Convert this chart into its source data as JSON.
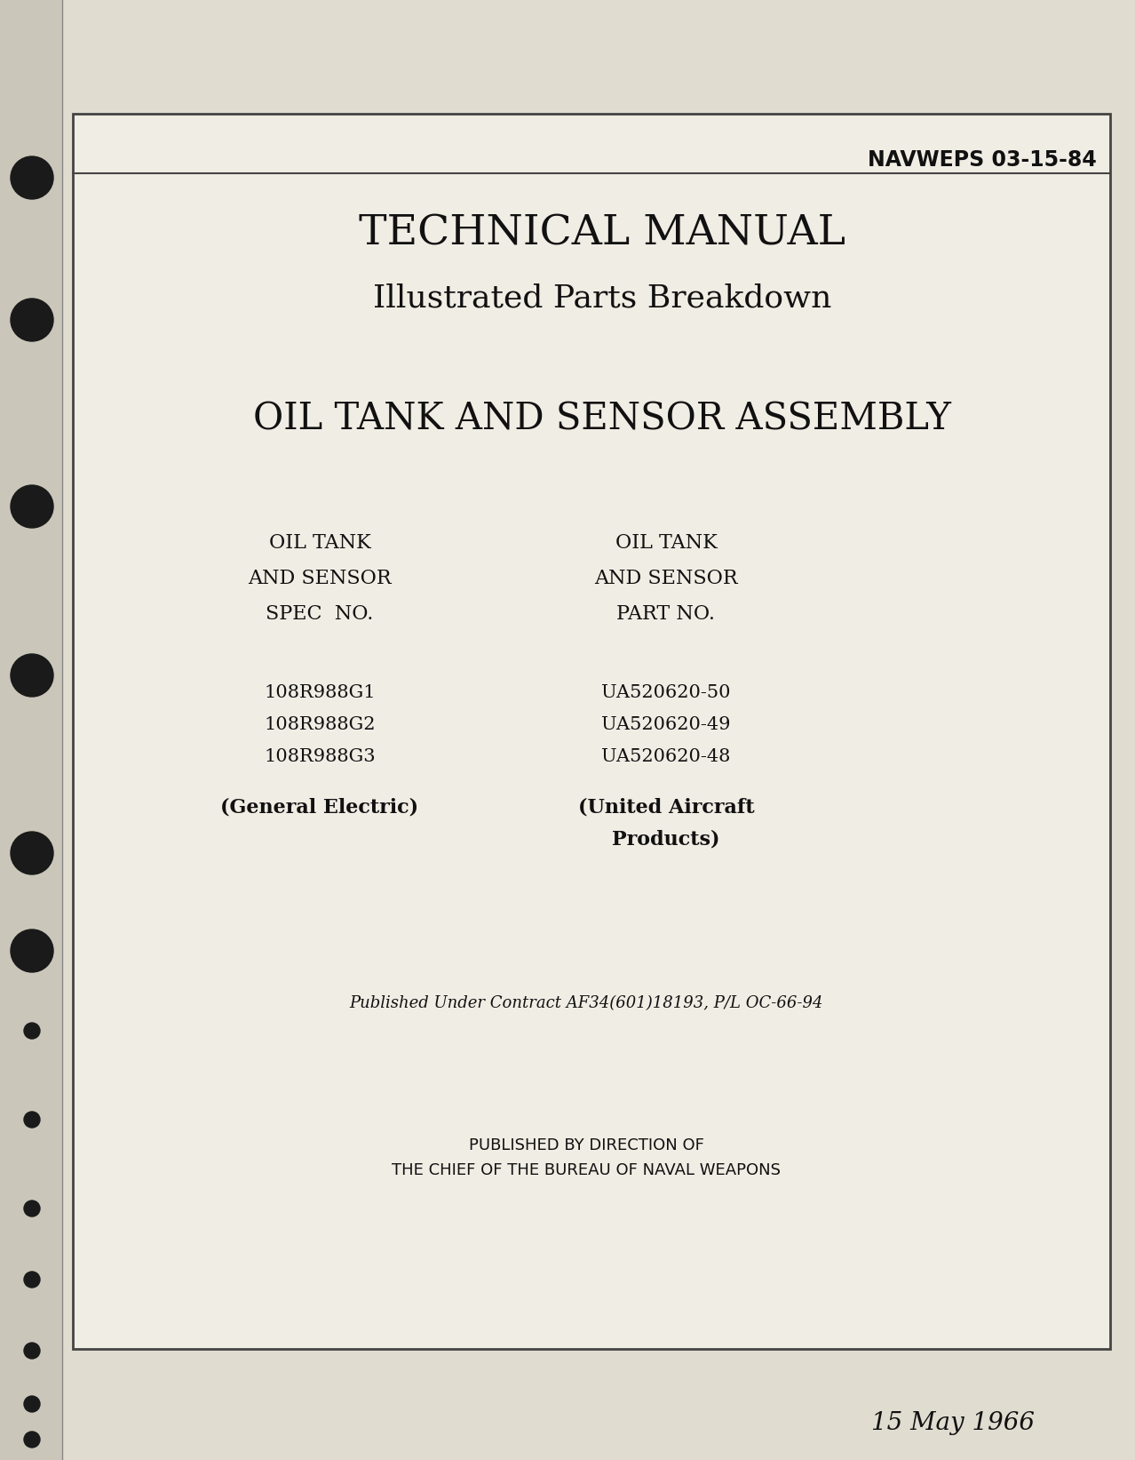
{
  "bg_color": "#e0dcd0",
  "inner_bg": "#f0ede4",
  "navweps": "NAVWEPS 03-15-84",
  "title1": "TECHNICAL MANUAL",
  "title2": "Illustrated Parts Breakdown",
  "main_title": "OIL TANK AND SENSOR ASSEMBLY",
  "col1_header": [
    "OIL TANK",
    "AND SENSOR",
    "SPEC  NO."
  ],
  "col2_header": [
    "OIL TANK",
    "AND SENSOR",
    "PART NO."
  ],
  "col1_specs": [
    "108R988G1",
    "108R988G2",
    "108R988G3"
  ],
  "col2_parts": [
    "UA520620-50",
    "UA520620-49",
    "UA520620-48"
  ],
  "col1_footer": "(General Electric)",
  "col2_footer": [
    "(United Aircraft",
    "Products)"
  ],
  "contract_text": "Published Under Contract AF34(601)18193, P/L OC-66-94",
  "published_line1": "PUBLISHED BY DIRECTION OF",
  "published_line2": "THE CHIEF OF THE BUREAU OF NAVAL WEAPONS",
  "date": "15 May 1966",
  "binder_hole_color": "#1a1a1a"
}
